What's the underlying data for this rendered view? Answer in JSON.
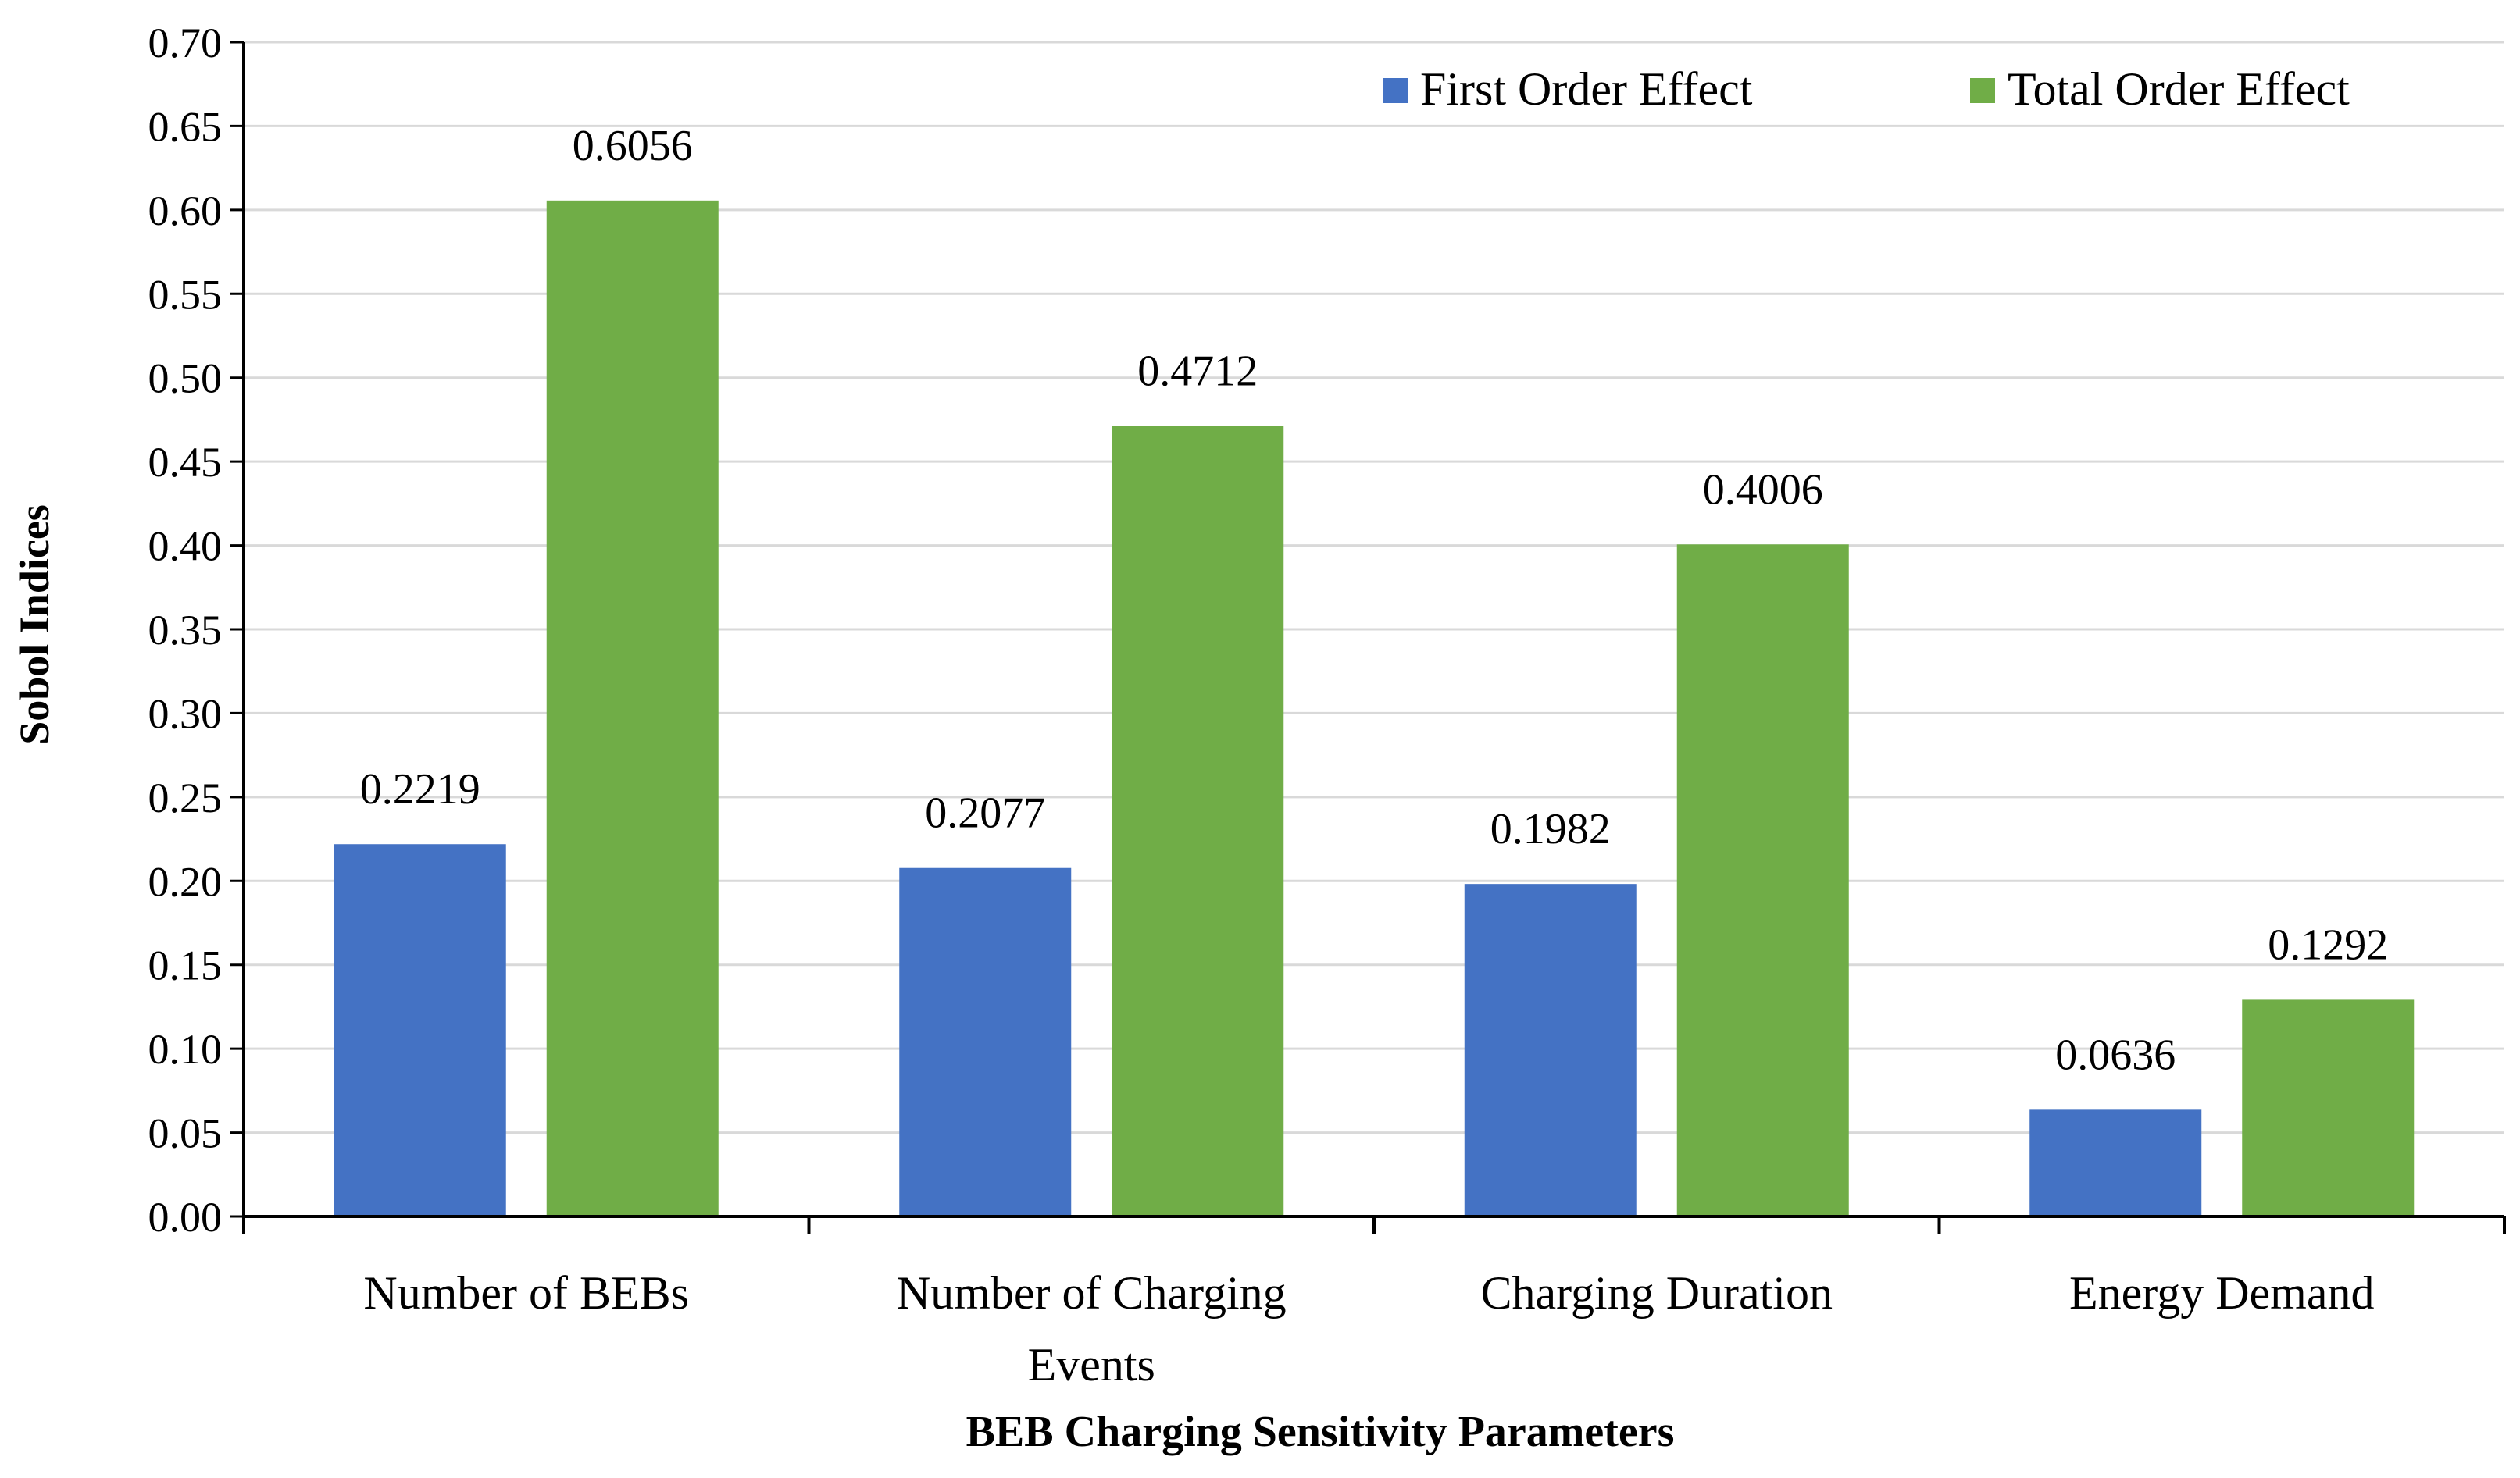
{
  "chart_data": {
    "type": "bar",
    "title": "",
    "xlabel": "BEB Charging Sensitivity Parameters",
    "ylabel": "Sobol Indices",
    "categories": [
      [
        "Number of BEBs"
      ],
      [
        "Number of Charging",
        "Events"
      ],
      [
        "Charging Duration"
      ],
      [
        "Energy Demand"
      ]
    ],
    "series": [
      {
        "name": "First Order Effect",
        "color": "#4472C4",
        "values": [
          0.2219,
          0.2077,
          0.1982,
          0.0636
        ],
        "labels": [
          "0.2219",
          "0.2077",
          "0.1982",
          "0.0636"
        ]
      },
      {
        "name": "Total Order Effect",
        "color": "#70AD47",
        "values": [
          0.6056,
          0.4712,
          0.4006,
          0.1292
        ],
        "labels": [
          "0.6056",
          "0.4712",
          "0.4006",
          "0.1292"
        ]
      }
    ],
    "ylim": [
      0,
      0.7
    ],
    "yticks": [
      "0.00",
      "0.05",
      "0.10",
      "0.15",
      "0.20",
      "0.25",
      "0.30",
      "0.35",
      "0.40",
      "0.45",
      "0.50",
      "0.55",
      "0.60",
      "0.65",
      "0.70"
    ],
    "grid": true,
    "legend_position": "top-right"
  }
}
